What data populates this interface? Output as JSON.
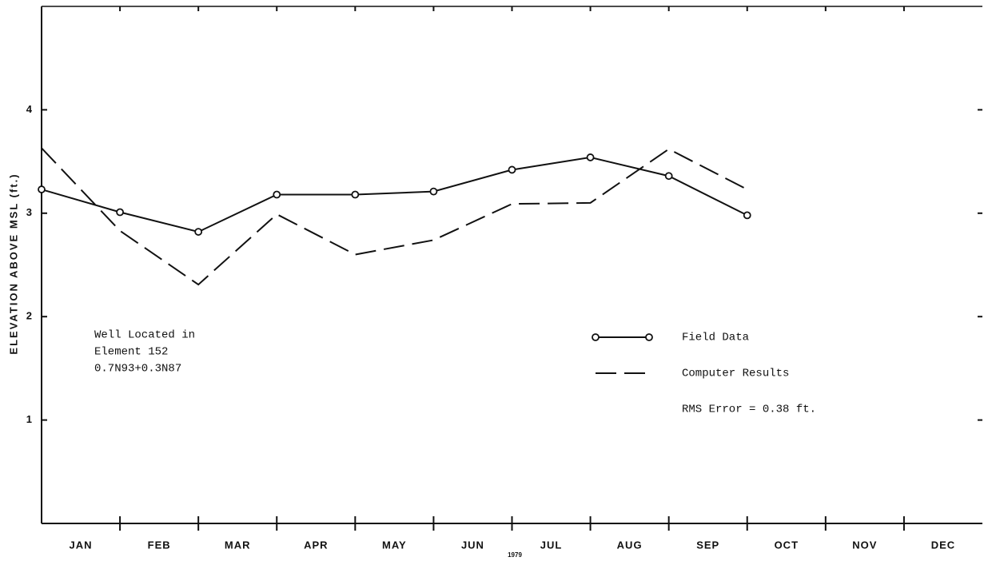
{
  "chart_data": {
    "type": "line",
    "y_label": "ELEVATION ABOVE MSL (ft.)",
    "x_label": "1979",
    "categories": [
      "JAN",
      "FEB",
      "MAR",
      "APR",
      "MAY",
      "JUN",
      "JUL",
      "AUG",
      "SEP",
      "OCT",
      "NOV",
      "DEC"
    ],
    "series": [
      {
        "name": "Field Data",
        "color": "#111111",
        "style": "solid-circles",
        "values": [
          3.23,
          3.01,
          2.82,
          3.18,
          3.18,
          3.21,
          3.42,
          3.54,
          3.36,
          2.98,
          null,
          null
        ]
      },
      {
        "name": "Computer Results",
        "color": "#111111",
        "style": "dashed",
        "values": [
          3.63,
          2.83,
          2.31,
          2.99,
          2.6,
          2.74,
          3.09,
          3.1,
          3.62,
          3.23,
          null,
          null
        ]
      }
    ],
    "ylim": [
      0,
      5
    ],
    "yticks": [
      1,
      2,
      3,
      4
    ],
    "annotations": [
      "Well Located in",
      "Element 152",
      "0.7N93+0.3N87"
    ],
    "note": "RMS Error = 0.38 ft."
  }
}
